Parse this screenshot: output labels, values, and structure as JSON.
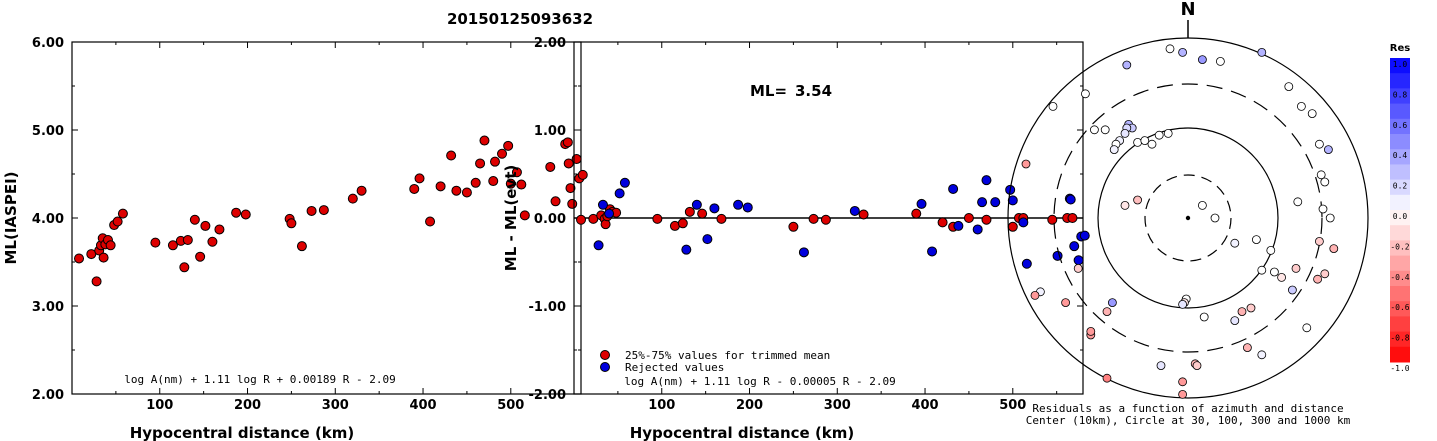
{
  "title": "20150125093632",
  "chart_data": [
    {
      "type": "scatter",
      "xlabel": "Hypocentral distance (km)",
      "ylabel": "ML(IASPEI)",
      "xlim": [
        0,
        580
      ],
      "ylim": [
        2.0,
        6.0
      ],
      "x_ticks": [
        "100",
        "200",
        "300",
        "400",
        "500"
      ],
      "y_ticks": [
        "2.00",
        "3.00",
        "4.00",
        "5.00",
        "6.00"
      ],
      "annotation": "log A(nm) + 1.11 log R + 0.00189 R - 2.09",
      "series": [
        {
          "color": "#dd0000",
          "points": [
            [
              8,
              3.54
            ],
            [
              22,
              3.59
            ],
            [
              28,
              3.28
            ],
            [
              31,
              3.63
            ],
            [
              33,
              3.69
            ],
            [
              35,
              3.77
            ],
            [
              36,
              3.55
            ],
            [
              38,
              3.7
            ],
            [
              41,
              3.75
            ],
            [
              44,
              3.69
            ],
            [
              48,
              3.92
            ],
            [
              52,
              3.96
            ],
            [
              58,
              4.05
            ],
            [
              95,
              3.72
            ],
            [
              115,
              3.69
            ],
            [
              124,
              3.74
            ],
            [
              128,
              3.44
            ],
            [
              132,
              3.75
            ],
            [
              140,
              3.98
            ],
            [
              146,
              3.56
            ],
            [
              152,
              3.91
            ],
            [
              160,
              3.73
            ],
            [
              168,
              3.87
            ],
            [
              187,
              4.06
            ],
            [
              198,
              4.04
            ],
            [
              248,
              3.99
            ],
            [
              250,
              3.94
            ],
            [
              262,
              3.68
            ],
            [
              273,
              4.08
            ],
            [
              287,
              4.09
            ],
            [
              320,
              4.22
            ],
            [
              330,
              4.31
            ],
            [
              390,
              4.33
            ],
            [
              396,
              4.45
            ],
            [
              408,
              3.96
            ],
            [
              420,
              4.36
            ],
            [
              432,
              4.71
            ],
            [
              438,
              4.31
            ],
            [
              450,
              4.29
            ],
            [
              460,
              4.4
            ],
            [
              465,
              4.62
            ],
            [
              470,
              4.88
            ],
            [
              480,
              4.42
            ],
            [
              482,
              4.64
            ],
            [
              490,
              4.73
            ],
            [
              497,
              4.82
            ],
            [
              500,
              4.39
            ],
            [
              507,
              4.52
            ],
            [
              512,
              4.38
            ],
            [
              516,
              4.03
            ],
            [
              545,
              4.58
            ],
            [
              551,
              4.19
            ],
            [
              562,
              4.84
            ],
            [
              565,
              4.86
            ],
            [
              566,
              4.62
            ],
            [
              568,
              4.34
            ],
            [
              570,
              4.16
            ],
            [
              575,
              4.67
            ],
            [
              578,
              4.45
            ],
            [
              582,
              4.49
            ]
          ]
        }
      ]
    },
    {
      "type": "scatter",
      "xlabel": "Hypocentral distance (km)",
      "ylabel": "ML - ML(evt)",
      "xlim": [
        0,
        580
      ],
      "ylim": [
        -2.0,
        2.0
      ],
      "x_ticks": [
        "100",
        "200",
        "300",
        "400",
        "500"
      ],
      "y_ticks": [
        "-2.00",
        "-1.00",
        "0.00",
        "1.00",
        "2.00"
      ],
      "ml_label": "ML=",
      "ml_value": "3.54",
      "annotation": "log A(nm) + 1.11 log R - 0.00005 R - 2.09",
      "legend": [
        {
          "label": "25%-75% values for trimmed mean",
          "color": "#dd0000"
        },
        {
          "label": "Rejected values",
          "color": "#0000dd"
        }
      ],
      "series": [
        {
          "name": "25%-75% values for trimmed mean",
          "color": "#dd0000",
          "points": [
            [
              8,
              -0.02
            ],
            [
              22,
              -0.01
            ],
            [
              31,
              0.03
            ],
            [
              35,
              -0.01
            ],
            [
              36,
              -0.07
            ],
            [
              38,
              0.02
            ],
            [
              41,
              0.1
            ],
            [
              44,
              0.07
            ],
            [
              48,
              0.06
            ],
            [
              95,
              -0.01
            ],
            [
              115,
              -0.09
            ],
            [
              124,
              -0.06
            ],
            [
              132,
              0.07
            ],
            [
              146,
              0.05
            ],
            [
              168,
              -0.01
            ],
            [
              250,
              -0.1
            ],
            [
              273,
              -0.01
            ],
            [
              287,
              -0.02
            ],
            [
              330,
              0.04
            ],
            [
              390,
              0.05
            ],
            [
              420,
              -0.05
            ],
            [
              432,
              -0.1
            ],
            [
              450,
              0.0
            ],
            [
              470,
              -0.02
            ],
            [
              500,
              -0.1
            ],
            [
              507,
              0.0
            ],
            [
              512,
              0.0
            ],
            [
              545,
              -0.02
            ],
            [
              562,
              0.0
            ],
            [
              568,
              0.0
            ]
          ]
        },
        {
          "name": "Rejected values",
          "color": "#0000dd",
          "points": [
            [
              28,
              -0.31
            ],
            [
              33,
              0.15
            ],
            [
              40,
              0.05
            ],
            [
              52,
              0.28
            ],
            [
              58,
              0.4
            ],
            [
              128,
              -0.36
            ],
            [
              140,
              0.15
            ],
            [
              152,
              -0.24
            ],
            [
              160,
              0.11
            ],
            [
              187,
              0.15
            ],
            [
              198,
              0.12
            ],
            [
              262,
              -0.39
            ],
            [
              320,
              0.08
            ],
            [
              396,
              0.16
            ],
            [
              408,
              -0.38
            ],
            [
              432,
              0.33
            ],
            [
              438,
              -0.09
            ],
            [
              460,
              -0.13
            ],
            [
              465,
              0.18
            ],
            [
              470,
              0.43
            ],
            [
              480,
              0.18
            ],
            [
              497,
              0.32
            ],
            [
              500,
              0.2
            ],
            [
              512,
              -0.05
            ],
            [
              516,
              -0.52
            ],
            [
              551,
              -0.43
            ],
            [
              565,
              0.22
            ],
            [
              566,
              0.21
            ],
            [
              570,
              -0.32
            ],
            [
              575,
              -0.48
            ],
            [
              578,
              -0.21
            ],
            [
              582,
              -0.2
            ]
          ]
        }
      ]
    },
    {
      "type": "scatter",
      "north_label": "N",
      "caption_line1": "Residuals as a function of azimuth and distance",
      "caption_line2": "Center (10km), Circle at 30, 100, 300 and 1000 km",
      "colorbar_title": "Res",
      "colorbar_ticks": [
        "1.0",
        "0.8",
        "0.6",
        "0.4",
        "0.2",
        "0.0",
        "-0.2",
        "-0.4",
        "-0.6",
        "-0.8",
        "-1.0"
      ],
      "residual_points": [
        [
          0.18,
          0.87,
          0.0
        ],
        [
          -0.1,
          0.94,
          0.0
        ],
        [
          -0.33,
          0.52,
          0.3
        ],
        [
          -0.31,
          0.5,
          0.2
        ],
        [
          -0.34,
          0.5,
          0.15
        ],
        [
          -0.35,
          0.47,
          0.1
        ],
        [
          -0.38,
          0.43,
          0.05
        ],
        [
          -0.28,
          0.42,
          0.0
        ],
        [
          -0.24,
          0.43,
          0.0
        ],
        [
          -0.2,
          0.41,
          0.0
        ],
        [
          -0.4,
          0.41,
          0.0
        ],
        [
          -0.41,
          0.38,
          0.05
        ],
        [
          -0.16,
          0.46,
          0.0
        ],
        [
          -0.11,
          0.47,
          0.0
        ],
        [
          -0.35,
          0.07,
          -0.1
        ],
        [
          0.61,
          0.09,
          0.0
        ],
        [
          0.26,
          -0.14,
          0.05
        ],
        [
          0.48,
          -0.3,
          0.0
        ],
        [
          0.41,
          -0.29,
          0.0
        ],
        [
          0.35,
          -0.5,
          -0.2
        ],
        [
          0.3,
          -0.52,
          -0.3
        ],
        [
          0.26,
          -0.57,
          0.1
        ],
        [
          0.09,
          -0.55,
          0.0
        ],
        [
          -0.01,
          -0.45,
          0.0
        ],
        [
          -0.02,
          -0.47,
          -0.1
        ],
        [
          -0.03,
          -0.48,
          0.1
        ],
        [
          -0.28,
          0.1,
          -0.25
        ],
        [
          -0.42,
          -0.47,
          0.4
        ],
        [
          -0.61,
          -0.28,
          -0.2
        ],
        [
          -0.82,
          -0.41,
          0.05
        ],
        [
          -0.85,
          -0.43,
          -0.4
        ],
        [
          -0.9,
          0.3,
          -0.4
        ],
        [
          -0.46,
          0.49,
          0.0
        ],
        [
          -0.52,
          0.49,
          0.0
        ],
        [
          -0.75,
          0.62,
          0.0
        ],
        [
          -0.57,
          0.69,
          0.0
        ],
        [
          -0.34,
          0.85,
          0.3
        ],
        [
          -0.03,
          0.92,
          0.3
        ],
        [
          0.08,
          0.88,
          0.4
        ],
        [
          0.41,
          0.92,
          0.3
        ],
        [
          0.56,
          0.73,
          0.0
        ],
        [
          0.63,
          0.62,
          0.0
        ],
        [
          0.69,
          0.58,
          0.0
        ],
        [
          0.73,
          0.41,
          0.0
        ],
        [
          0.78,
          0.38,
          0.3
        ],
        [
          0.74,
          0.24,
          0.0
        ],
        [
          0.76,
          0.2,
          0.0
        ],
        [
          0.75,
          0.05,
          0.0
        ],
        [
          0.79,
          0.0,
          0.0
        ],
        [
          0.81,
          -0.17,
          -0.3
        ],
        [
          0.73,
          -0.13,
          -0.2
        ],
        [
          0.6,
          -0.28,
          -0.2
        ],
        [
          0.58,
          -0.4,
          0.2
        ],
        [
          0.52,
          -0.33,
          -0.1
        ],
        [
          0.46,
          -0.18,
          0.0
        ],
        [
          0.38,
          -0.12,
          0.0
        ],
        [
          0.08,
          0.07,
          0.0
        ],
        [
          0.15,
          0.0,
          0.0
        ],
        [
          -0.45,
          -0.52,
          -0.3
        ],
        [
          -0.54,
          -0.65,
          -0.4
        ],
        [
          -0.15,
          -0.82,
          0.1
        ],
        [
          0.04,
          -0.81,
          -0.3
        ],
        [
          0.05,
          -0.82,
          -0.2
        ],
        [
          -0.45,
          -0.89,
          -0.5
        ],
        [
          -0.03,
          -0.98,
          -0.4
        ],
        [
          -0.03,
          -0.91,
          -0.4
        ],
        [
          0.33,
          -0.72,
          -0.3
        ],
        [
          -0.68,
          -0.47,
          -0.4
        ],
        [
          -0.54,
          -0.63,
          -0.4
        ],
        [
          0.41,
          -0.76,
          0.05
        ],
        [
          0.66,
          -0.61,
          0.0
        ],
        [
          0.72,
          -0.34,
          -0.3
        ],
        [
          0.76,
          -0.31,
          -0.2
        ]
      ]
    }
  ]
}
